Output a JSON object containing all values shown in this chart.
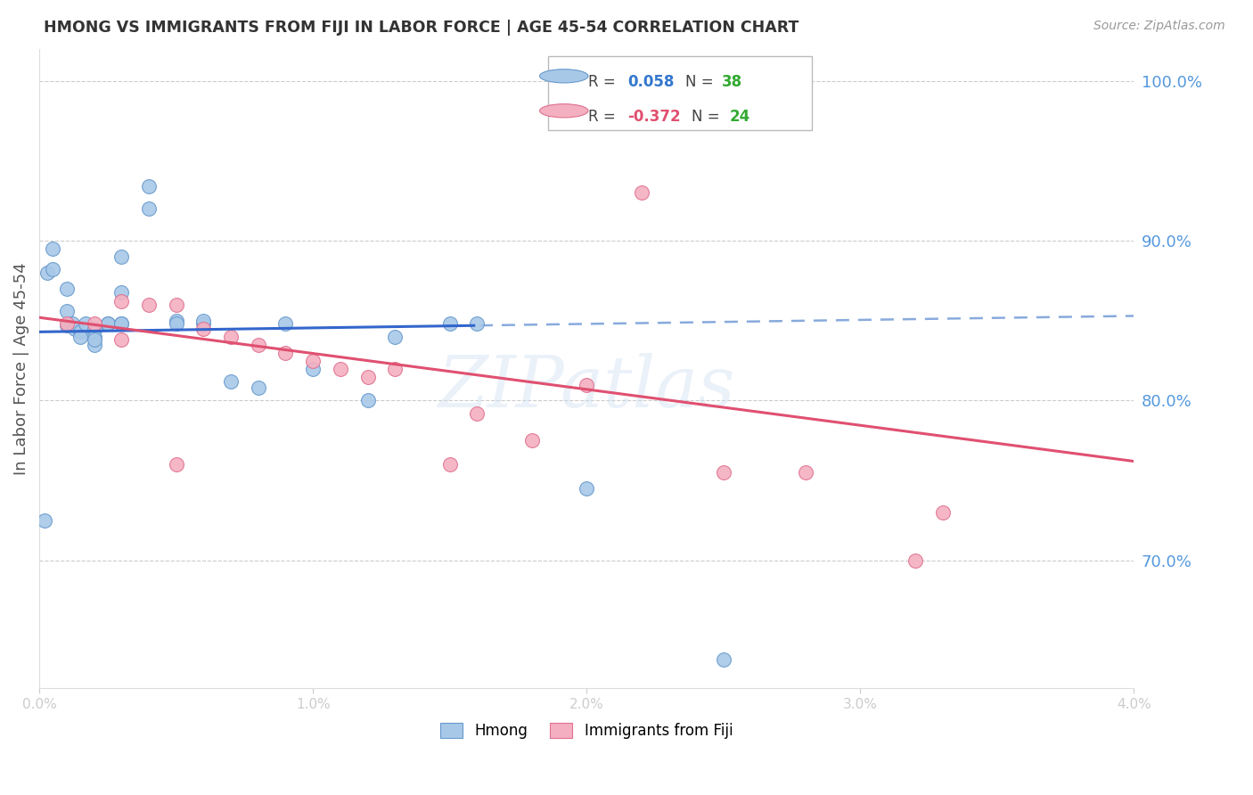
{
  "title": "HMONG VS IMMIGRANTS FROM FIJI IN LABOR FORCE | AGE 45-54 CORRELATION CHART",
  "source": "Source: ZipAtlas.com",
  "ylabel": "In Labor Force | Age 45-54",
  "ytick_values": [
    1.0,
    0.9,
    0.8,
    0.7
  ],
  "xmin": 0.0,
  "xmax": 0.04,
  "ymin": 0.62,
  "ymax": 1.02,
  "hmong_color": "#a8c8e8",
  "hmong_edge_color": "#6699cc",
  "fiji_color": "#f4b0c0",
  "fiji_edge_color": "#e07090",
  "hmong_R": 0.058,
  "hmong_N": 38,
  "fiji_R": -0.372,
  "fiji_N": 24,
  "legend_R_color_blue": "#3377cc",
  "legend_R_color_pink": "#e05070",
  "legend_N_color": "#33aa33",
  "watermark": "ZIPatlas",
  "hmong_line_color": "#3366cc",
  "hmong_dash_color": "#88aadd",
  "fiji_line_color": "#e05070",
  "hmong_x": [
    0.0002,
    0.0003,
    0.0005,
    0.0005,
    0.001,
    0.001,
    0.001,
    0.0012,
    0.0013,
    0.0015,
    0.0015,
    0.0017,
    0.002,
    0.002,
    0.002,
    0.002,
    0.0025,
    0.0025,
    0.003,
    0.003,
    0.003,
    0.003,
    0.004,
    0.004,
    0.005,
    0.005,
    0.006,
    0.006,
    0.007,
    0.008,
    0.009,
    0.01,
    0.012,
    0.013,
    0.015,
    0.016,
    0.02,
    0.025
  ],
  "hmong_y": [
    0.725,
    0.88,
    0.882,
    0.895,
    0.856,
    0.87,
    0.847,
    0.848,
    0.845,
    0.843,
    0.84,
    0.848,
    0.845,
    0.84,
    0.835,
    0.838,
    0.848,
    0.848,
    0.89,
    0.868,
    0.848,
    0.848,
    0.92,
    0.934,
    0.85,
    0.848,
    0.848,
    0.85,
    0.812,
    0.808,
    0.848,
    0.82,
    0.8,
    0.84,
    0.848,
    0.848,
    0.745,
    0.638
  ],
  "fiji_x": [
    0.001,
    0.002,
    0.003,
    0.003,
    0.004,
    0.005,
    0.006,
    0.007,
    0.008,
    0.009,
    0.01,
    0.011,
    0.012,
    0.013,
    0.015,
    0.016,
    0.018,
    0.02,
    0.022,
    0.025,
    0.028,
    0.032,
    0.033,
    0.005
  ],
  "fiji_y": [
    0.848,
    0.848,
    0.862,
    0.838,
    0.86,
    0.86,
    0.845,
    0.84,
    0.835,
    0.83,
    0.825,
    0.82,
    0.815,
    0.82,
    0.76,
    0.792,
    0.775,
    0.81,
    0.93,
    0.755,
    0.755,
    0.7,
    0.73,
    0.76
  ],
  "xtick_positions": [
    0.0,
    0.01,
    0.02,
    0.03,
    0.04
  ],
  "xtick_labels": [
    "0.0%",
    "1.0%",
    "2.0%",
    "3.0%",
    "4.0%"
  ]
}
